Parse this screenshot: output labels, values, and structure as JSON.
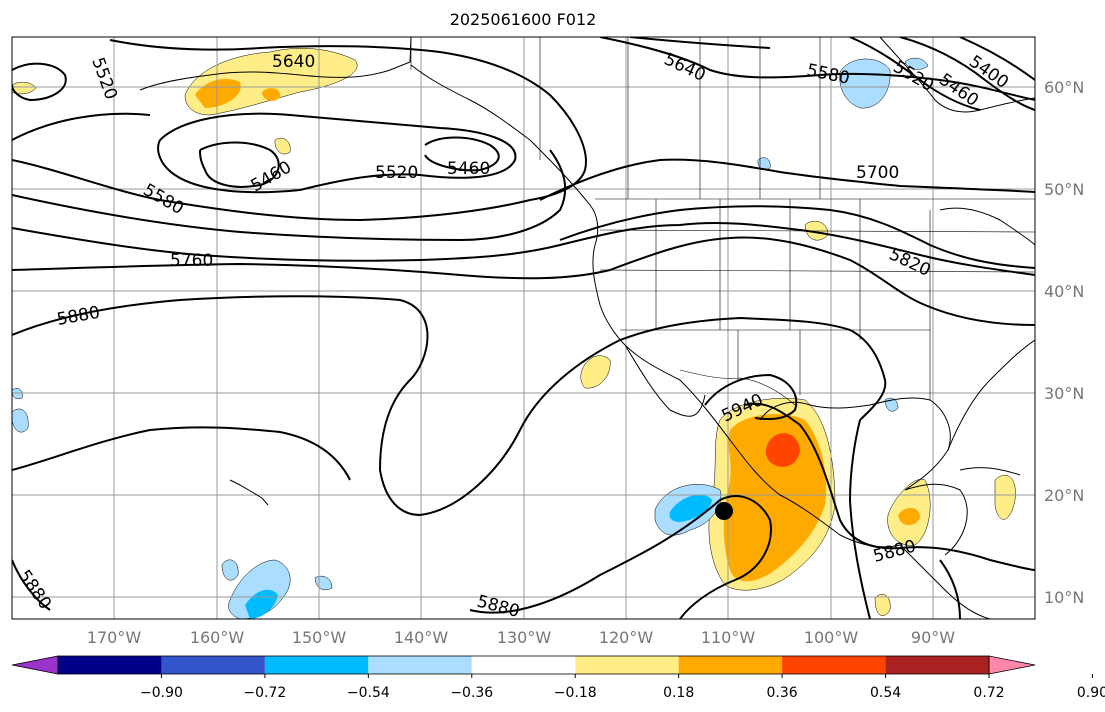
{
  "title": "2025061600 F012",
  "latitude_labels": [
    "60°N",
    "50°N",
    "40°N",
    "30°N",
    "20°N",
    "10°N"
  ],
  "longitude_labels": [
    "170°W",
    "160°W",
    "150°W",
    "140°W",
    "130°W",
    "120°W",
    "110°W",
    "100°W",
    "90°W"
  ],
  "contour_labels": [
    "5520",
    "5640",
    "5460",
    "5520",
    "5460",
    "5580",
    "5640",
    "5580",
    "5520",
    "5460",
    "5400",
    "5700",
    "5760",
    "5820",
    "5880",
    "5940",
    "5880",
    "5880",
    "5880"
  ],
  "colorbar": {
    "labels": [
      "−0.90",
      "−0.72",
      "−0.54",
      "−0.36",
      "−0.18",
      "0.18",
      "0.36",
      "0.54",
      "0.72",
      "0.90"
    ],
    "colors": [
      "#9933cc",
      "#000088",
      "#3355cc",
      "#00bbff",
      "#aaddff",
      "#ffffff",
      "#ffee88",
      "#ffaa00",
      "#ff4400",
      "#aa2222",
      "#ff88aa"
    ]
  },
  "colors": {
    "grid": "#999999",
    "contour": "#000000",
    "marker": "#000000"
  }
}
